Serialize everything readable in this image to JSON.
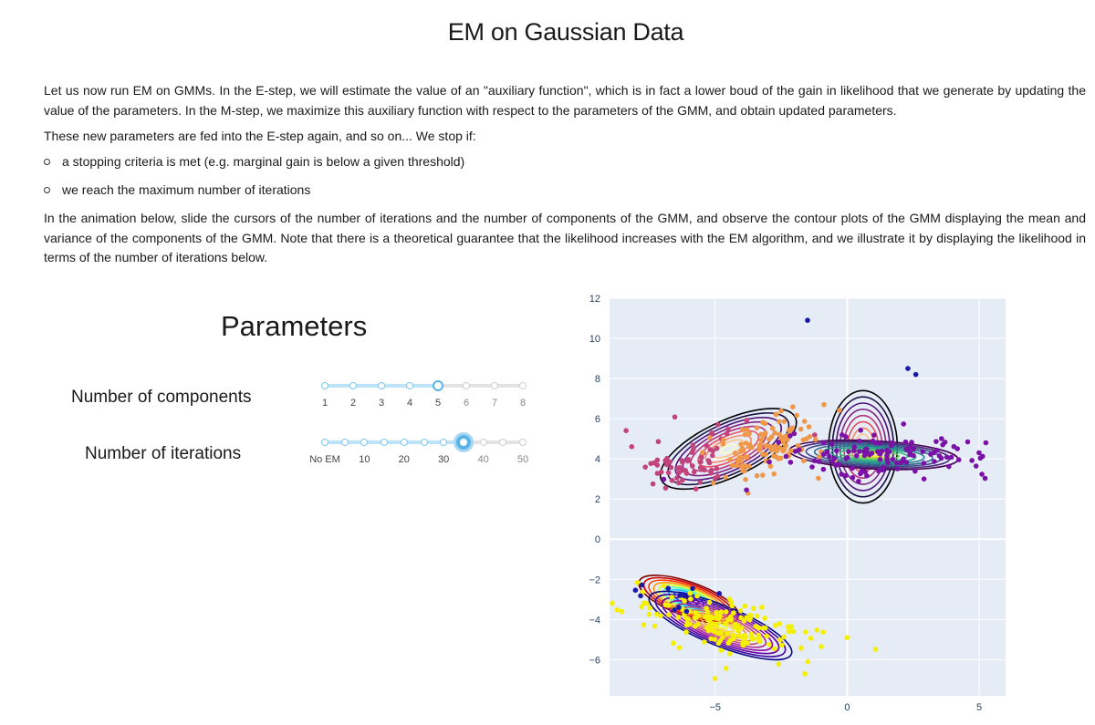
{
  "page": {
    "title": "EM on Gaussian Data",
    "p1": "Let us now run EM on GMMs. In the E-step, we will estimate the value of an \"auxiliary function\", which is in fact a lower boud of the gain in likelihood that we generate by updating the value of the parameters. In the M-step, we maximize this auxiliary function with respect to the parameters of the GMM, and obtain updated parameters.",
    "p2": "These new parameters are fed into the E-step again, and so on... We stop if:",
    "bullets": [
      "a stopping criteria is met (e.g. marginal gain is below a given threshold)",
      "we reach the maximum number of iterations"
    ],
    "p3": "In the animation below, slide the cursors of the number of iterations and the number of components of the GMM, and observe the contour plots of the GMM displaying the mean and variance of the components of the GMM. Note that there is a theoretical guarantee that the likelihood increases with the EM algorithm, and we illustrate it by displaying the likelihood in terms of the number of iterations below."
  },
  "parameters": {
    "title": "Parameters",
    "components": {
      "label": "Number of components",
      "ticks": [
        "1",
        "2",
        "3",
        "4",
        "5",
        "6",
        "7",
        "8"
      ],
      "selected_index": 4
    },
    "iterations": {
      "label": "Number of iterations",
      "ticks": [
        "No EM",
        "10",
        "20",
        "30",
        "40",
        "50"
      ],
      "steps": 11,
      "selected_index": 7
    },
    "colors": {
      "accent": "#5ab4e8",
      "track_fill": "#bde3f8",
      "track": "#e3e3e3"
    }
  },
  "chart_data": {
    "type": "scatter",
    "subtype": "gmm-contour",
    "xlim": [
      -9.0,
      6.0
    ],
    "ylim": [
      -7.8,
      12.0
    ],
    "xticks": [
      -5,
      0,
      5
    ],
    "yticks": [
      -6,
      -4,
      -2,
      0,
      2,
      4,
      6,
      8,
      10,
      12
    ],
    "xtick_labels": [
      "−5",
      "0",
      "5"
    ],
    "ytick_labels": [
      "−6",
      "−4",
      "−2",
      "0",
      "2",
      "4",
      "6",
      "8",
      "10",
      "12"
    ],
    "grid": true,
    "background": "#e5ecf6",
    "clusters": [
      {
        "color": "#e17ff0",
        "mean": [
          -5.9,
          3.9
        ],
        "sd": [
          1.2,
          0.75
        ],
        "rho": 0.35,
        "n": 70,
        "point_color": "#c2447a"
      },
      {
        "color": "#f0a04b",
        "mean": [
          -3.0,
          4.6
        ],
        "sd": [
          1.1,
          0.9
        ],
        "rho": 0.3,
        "n": 120,
        "point_color": "#f0984a"
      },
      {
        "color": "#7b1fa2",
        "mean": [
          1.6,
          4.2
        ],
        "sd": [
          2.0,
          0.5
        ],
        "rho": 0.0,
        "n": 120,
        "point_color": "#7a12a8"
      },
      {
        "color": "#ffd400",
        "mean": [
          -4.6,
          -4.3
        ],
        "sd": [
          1.8,
          0.75
        ],
        "rho": -0.45,
        "n": 160,
        "point_color": "#f4f000"
      },
      {
        "color": "#1a1aa8",
        "mean": [
          -6.5,
          -3.1
        ],
        "sd": [
          0.9,
          0.5
        ],
        "rho": -0.2,
        "n": 12,
        "point_color": "#1a1aa8"
      }
    ],
    "components": [
      {
        "mean": [
          -4.5,
          4.5
        ],
        "sx": 2.8,
        "sy": 1.4,
        "angle": 25,
        "palette": "magma"
      },
      {
        "mean": [
          0.6,
          4.6
        ],
        "sx": 1.3,
        "sy": 2.8,
        "angle": 0,
        "palette": "magma"
      },
      {
        "mean": [
          1.0,
          4.2
        ],
        "sx": 3.2,
        "sy": 0.7,
        "angle": -3,
        "palette": "viridis"
      },
      {
        "mean": [
          -6.0,
          -3.0
        ],
        "sx": 2.0,
        "sy": 0.85,
        "angle": -20,
        "palette": "jet"
      },
      {
        "mean": [
          -4.8,
          -4.3
        ],
        "sx": 2.9,
        "sy": 1.0,
        "angle": -22,
        "palette": "plasma"
      }
    ],
    "outliers": [
      {
        "x": -1.5,
        "y": 10.9,
        "color": "#1a1aa8"
      },
      {
        "x": 2.3,
        "y": 8.5,
        "color": "#1a1aa8"
      },
      {
        "x": 2.6,
        "y": 8.2,
        "color": "#1a1aa8"
      },
      {
        "x": 0.0,
        "y": -4.9,
        "color": "#f4f000"
      },
      {
        "x": -1.6,
        "y": -6.7,
        "color": "#f4f000"
      }
    ]
  }
}
